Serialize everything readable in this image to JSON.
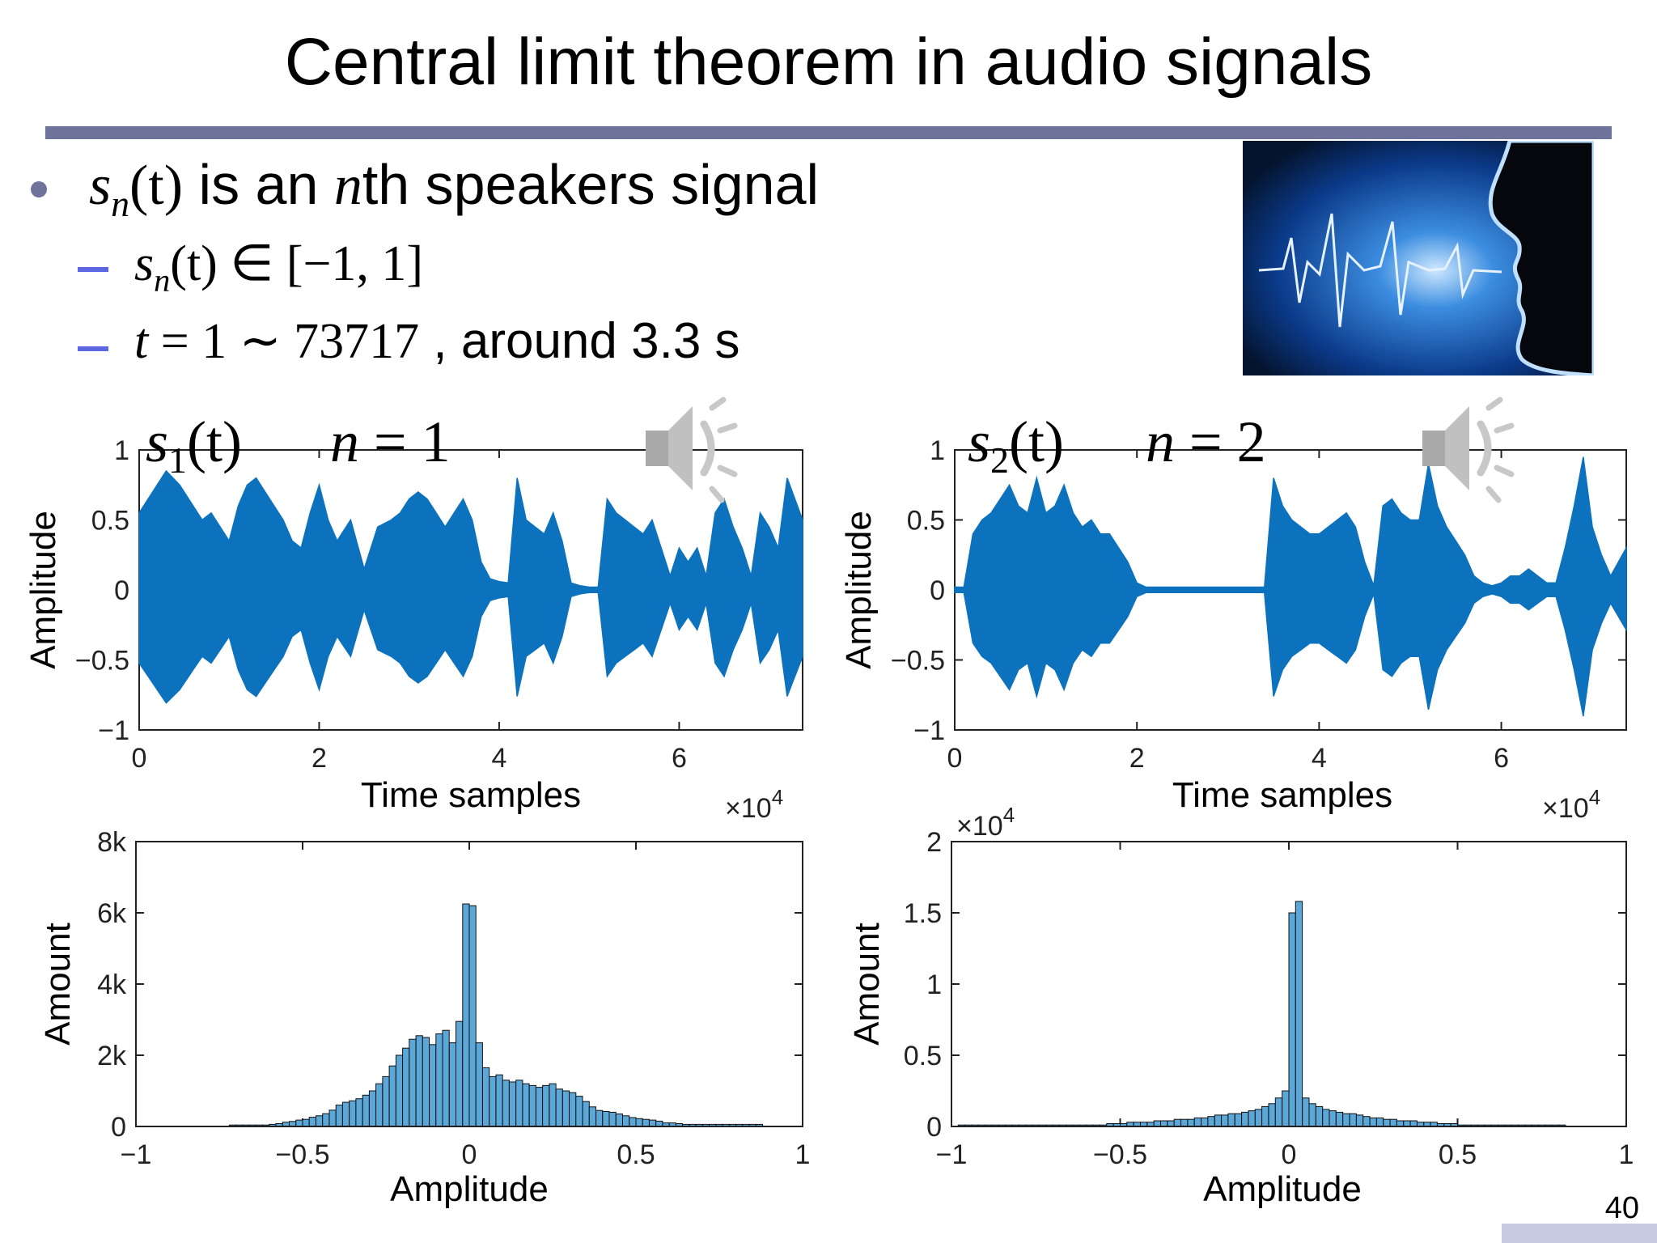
{
  "slide": {
    "title": "Central limit theorem in audio signals",
    "page_number": "40"
  },
  "bullets": {
    "b1": {
      "math_s": "s",
      "math_n": "n",
      "math_t": "(t)",
      "text1": " is an ",
      "math_nth": "n",
      "text2": "th speakers signal"
    },
    "b2": {
      "math": "s",
      "sub": "n",
      "rest": "(t) ∈ [−1, 1]"
    },
    "b3": {
      "math_t": "t",
      "math_eq": " = 1 ∼ 73717",
      "text": " , around 3.3 s"
    }
  },
  "icons": {
    "speaker_image": "speaker-silhouette-soundwave-image",
    "audio": "audio-speaker-icon"
  },
  "chart_data": [
    {
      "type": "area",
      "id": "waveform-1",
      "label_s": "s",
      "label_sub": "1",
      "label_t": "(t)",
      "label_n": "n",
      "label_eq": " = 1",
      "xlabel": "Time samples",
      "ylabel": "Amplitude",
      "multiplier": "×10",
      "multiplier_exp": "4",
      "xlim": [
        0,
        73717
      ],
      "ylim": [
        -1,
        1
      ],
      "x_ticks": [
        "0",
        "2",
        "4",
        "6"
      ],
      "x_tick_values": [
        0,
        20000,
        40000,
        60000
      ],
      "y_ticks": [
        "1",
        "0.5",
        "0",
        "−0.5",
        "−1"
      ],
      "y_tick_values": [
        1,
        0.5,
        0,
        -0.5,
        -1
      ],
      "color": "#0c72bd",
      "x": [
        0,
        1500,
        3000,
        4500,
        6000,
        7000,
        8000,
        9000,
        10000,
        11000,
        12000,
        13000,
        14500,
        16000,
        17000,
        18000,
        19000,
        20000,
        21000,
        22000,
        23500,
        25000,
        26500,
        28000,
        29000,
        30000,
        31000,
        32000,
        33000,
        34000,
        35000,
        36000,
        37000,
        38000,
        39000,
        40000,
        41000,
        42000,
        43000,
        44000,
        45000,
        46000,
        47000,
        48000,
        49000,
        50000,
        51000,
        52000,
        53000,
        54000,
        55000,
        56000,
        57000,
        58000,
        59000,
        60000,
        61000,
        62000,
        63000,
        64000,
        65000,
        66000,
        67000,
        68000,
        69000,
        70000,
        71000,
        72000,
        73717
      ],
      "values": [
        0.55,
        0.7,
        0.85,
        0.75,
        0.6,
        0.5,
        0.55,
        0.45,
        0.35,
        0.6,
        0.75,
        0.8,
        0.65,
        0.5,
        0.35,
        0.3,
        0.55,
        0.75,
        0.5,
        0.35,
        0.5,
        0.15,
        0.45,
        0.5,
        0.55,
        0.65,
        0.7,
        0.65,
        0.55,
        0.45,
        0.55,
        0.65,
        0.5,
        0.2,
        0.08,
        0.06,
        0.05,
        0.8,
        0.5,
        0.45,
        0.4,
        0.55,
        0.35,
        0.05,
        0.03,
        0.02,
        0.02,
        0.65,
        0.55,
        0.5,
        0.45,
        0.4,
        0.5,
        0.3,
        0.1,
        0.3,
        0.2,
        0.3,
        0.1,
        0.55,
        0.65,
        0.45,
        0.3,
        0.1,
        0.55,
        0.45,
        0.3,
        0.8,
        0.5
      ]
    },
    {
      "type": "area",
      "id": "waveform-2",
      "label_s": "s",
      "label_sub": "2",
      "label_t": "(t)",
      "label_n": "n",
      "label_eq": " = 2",
      "xlabel": "Time samples",
      "ylabel": "Amplitude",
      "multiplier": "×10",
      "multiplier_exp": "4",
      "xlim": [
        0,
        73717
      ],
      "ylim": [
        -1,
        1
      ],
      "x_ticks": [
        "0",
        "2",
        "4",
        "6"
      ],
      "x_tick_values": [
        0,
        20000,
        40000,
        60000
      ],
      "y_ticks": [
        "1",
        "0.5",
        "0",
        "−0.5",
        "−1"
      ],
      "y_tick_values": [
        1,
        0.5,
        0,
        -0.5,
        -1
      ],
      "color": "#0c72bd",
      "x": [
        0,
        1000,
        2000,
        3000,
        4000,
        5000,
        6000,
        7000,
        8000,
        9000,
        10000,
        11000,
        12000,
        13000,
        14000,
        15000,
        16000,
        17000,
        18000,
        19000,
        20000,
        21000,
        23000,
        25000,
        27000,
        29000,
        31000,
        32000,
        33000,
        34000,
        35000,
        36000,
        37000,
        38000,
        39000,
        40000,
        41000,
        42000,
        43000,
        44000,
        45000,
        46000,
        47000,
        48000,
        49000,
        50000,
        51000,
        52000,
        53000,
        54000,
        55000,
        56000,
        57000,
        58000,
        59000,
        60000,
        61000,
        62000,
        63000,
        64000,
        65000,
        66000,
        67000,
        68000,
        69000,
        70000,
        71000,
        72000,
        73717
      ],
      "values": [
        0.02,
        0.02,
        0.4,
        0.5,
        0.55,
        0.65,
        0.75,
        0.6,
        0.55,
        0.8,
        0.55,
        0.6,
        0.75,
        0.55,
        0.45,
        0.5,
        0.4,
        0.4,
        0.3,
        0.2,
        0.05,
        0.02,
        0.02,
        0.02,
        0.02,
        0.02,
        0.02,
        0.02,
        0.02,
        0.02,
        0.8,
        0.6,
        0.5,
        0.45,
        0.4,
        0.4,
        0.45,
        0.5,
        0.55,
        0.45,
        0.2,
        0.03,
        0.6,
        0.65,
        0.55,
        0.5,
        0.5,
        0.9,
        0.6,
        0.45,
        0.35,
        0.25,
        0.1,
        0.05,
        0.03,
        0.05,
        0.1,
        0.1,
        0.15,
        0.1,
        0.05,
        0.05,
        0.3,
        0.6,
        0.95,
        0.45,
        0.25,
        0.1,
        0.3
      ]
    },
    {
      "type": "bar",
      "id": "histogram-1",
      "xlabel": "Amplitude",
      "ylabel": "Amount",
      "xlim": [
        -1,
        1
      ],
      "ylim": [
        0,
        8000
      ],
      "x_ticks": [
        "−1",
        "−0.5",
        "0",
        "0.5",
        "1"
      ],
      "x_tick_values": [
        -1,
        -0.5,
        0,
        0.5,
        1
      ],
      "y_ticks": [
        "8k",
        "6k",
        "4k",
        "2k",
        "0"
      ],
      "y_tick_values": [
        8000,
        6000,
        4000,
        2000,
        0
      ],
      "color": "#5ba7d8",
      "bin_start": -0.72,
      "bin_width": 0.02,
      "values": [
        40,
        40,
        40,
        40,
        40,
        40,
        60,
        80,
        120,
        140,
        180,
        200,
        260,
        300,
        360,
        460,
        600,
        680,
        720,
        780,
        880,
        1000,
        1200,
        1400,
        1700,
        2000,
        2200,
        2450,
        2550,
        2500,
        2300,
        2600,
        2700,
        2350,
        2950,
        6250,
        6200,
        2350,
        1650,
        1400,
        1450,
        1300,
        1250,
        1300,
        1200,
        1150,
        1100,
        1150,
        1200,
        1050,
        1000,
        950,
        850,
        700,
        550,
        450,
        420,
        400,
        350,
        300,
        250,
        220,
        200,
        180,
        150,
        100,
        100,
        80,
        60,
        60,
        60,
        60,
        60,
        60,
        60,
        60,
        60,
        60,
        60,
        60
      ]
    },
    {
      "type": "bar",
      "id": "histogram-2",
      "xlabel": "Amplitude",
      "ylabel": "Amount",
      "multiplier": "×10",
      "multiplier_exp": "4",
      "xlim": [
        -1,
        1
      ],
      "ylim": [
        0,
        2
      ],
      "x_ticks": [
        "−1",
        "−0.5",
        "0",
        "0.5",
        "1"
      ],
      "x_tick_values": [
        -1,
        -0.5,
        0,
        0.5,
        1
      ],
      "y_ticks": [
        "2",
        "1.5",
        "1",
        "0.5",
        "0"
      ],
      "y_tick_values": [
        2,
        1.5,
        1,
        0.5,
        0
      ],
      "color": "#5ba7d8",
      "bin_start": -0.98,
      "bin_width": 0.02,
      "values": [
        0.01,
        0.01,
        0.01,
        0.01,
        0.01,
        0.01,
        0.01,
        0.01,
        0.01,
        0.01,
        0.01,
        0.01,
        0.01,
        0.01,
        0.01,
        0.01,
        0.01,
        0.01,
        0.01,
        0.01,
        0.01,
        0.01,
        0.02,
        0.02,
        0.02,
        0.03,
        0.03,
        0.03,
        0.03,
        0.04,
        0.04,
        0.04,
        0.05,
        0.05,
        0.05,
        0.06,
        0.06,
        0.07,
        0.08,
        0.08,
        0.09,
        0.09,
        0.1,
        0.11,
        0.12,
        0.14,
        0.16,
        0.2,
        0.25,
        1.5,
        1.58,
        0.2,
        0.16,
        0.14,
        0.12,
        0.11,
        0.1,
        0.09,
        0.09,
        0.08,
        0.07,
        0.06,
        0.06,
        0.05,
        0.05,
        0.04,
        0.04,
        0.04,
        0.03,
        0.03,
        0.03,
        0.02,
        0.02,
        0.02,
        0.01,
        0.01,
        0.01,
        0.01,
        0.01,
        0.01,
        0.01,
        0.01,
        0.01,
        0.01,
        0.01,
        0.01,
        0.01,
        0.01,
        0.01,
        0.01
      ]
    }
  ]
}
